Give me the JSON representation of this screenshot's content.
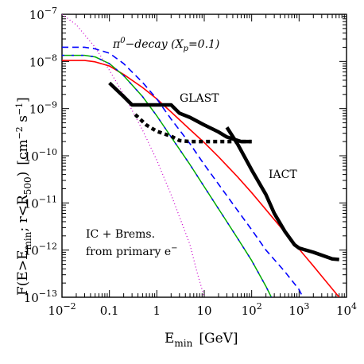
{
  "chart_data": {
    "type": "line",
    "xscale": "log",
    "yscale": "log",
    "xlim": [
      0.01,
      10000
    ],
    "ylim": [
      1e-13,
      1e-07
    ],
    "xlabel_main": "E",
    "xlabel_sub": "min",
    "xlabel_unit": "[GeV]",
    "ylabel_pre": "F(E>E",
    "ylabel_sub1": "min",
    "ylabel_mid": "; r<R",
    "ylabel_sub2": "500",
    "ylabel_post": ")",
    "ylabel_unit_pre": "[cm",
    "ylabel_unit_sup1": "−2",
    "ylabel_unit_mid": " s",
    "ylabel_unit_sup2": "−1",
    "ylabel_unit_post": "]",
    "x_ticks": [
      {
        "value": 0.01,
        "base": "10",
        "exp": "−2"
      },
      {
        "value": 0.1,
        "text": "0.1"
      },
      {
        "value": 1,
        "text": "1"
      },
      {
        "value": 10,
        "text": "10"
      },
      {
        "value": 100,
        "base": "10",
        "exp": "2"
      },
      {
        "value": 1000,
        "base": "10",
        "exp": "3"
      },
      {
        "value": 10000,
        "base": "10",
        "exp": "4"
      }
    ],
    "y_ticks": [
      {
        "value": 1e-13,
        "base": "10",
        "exp": "−13"
      },
      {
        "value": 1e-12,
        "base": "10",
        "exp": "−12"
      },
      {
        "value": 1e-11,
        "base": "10",
        "exp": "−11"
      },
      {
        "value": 1e-10,
        "base": "10",
        "exp": "−10"
      },
      {
        "value": 1e-09,
        "base": "10",
        "exp": "−9"
      },
      {
        "value": 1e-08,
        "base": "10",
        "exp": "−8"
      },
      {
        "value": 1e-07,
        "base": "10",
        "exp": "−7"
      }
    ],
    "annotations": {
      "pi0_label": "π",
      "pi0_sup": "0",
      "pi0_rest": "−decay (X",
      "pi0_sub": "p",
      "pi0_end": "=0.1)",
      "glast": "GLAST",
      "iact": "IACT",
      "ic_line1": "IC + Brems.",
      "ic_line2": "from primary e",
      "ic_sup": "−"
    },
    "series": [
      {
        "color": "#ff0000",
        "dash": "solid",
        "width": 1.6,
        "points": [
          [
            0.01,
            1.05e-08
          ],
          [
            0.03,
            1.05e-08
          ],
          [
            0.05,
            9.8e-09
          ],
          [
            0.1,
            8e-09
          ],
          [
            0.2,
            5.3e-09
          ],
          [
            0.5,
            2.8e-09
          ],
          [
            1,
            1.6e-09
          ],
          [
            2,
            8.5e-10
          ],
          [
            5,
            3.6e-10
          ],
          [
            10,
            1.9e-10
          ],
          [
            20,
            9.5e-11
          ],
          [
            50,
            3.6e-11
          ],
          [
            100,
            1.65e-11
          ],
          [
            200,
            7.2e-12
          ],
          [
            500,
            2.4e-12
          ],
          [
            1000,
            1.05e-12
          ],
          [
            2000,
            4.6e-13
          ],
          [
            3000,
            2.8e-13
          ],
          [
            5000,
            1.5e-13
          ],
          [
            7000,
            1e-13
          ]
        ]
      },
      {
        "color": "#0000ff",
        "dash": "8,5",
        "width": 1.6,
        "points": [
          [
            0.01,
            2e-08
          ],
          [
            0.03,
            2e-08
          ],
          [
            0.05,
            1.85e-08
          ],
          [
            0.1,
            1.5e-08
          ],
          [
            0.2,
            9e-09
          ],
          [
            0.5,
            3.6e-09
          ],
          [
            1,
            1.6e-09
          ],
          [
            2,
            6e-10
          ],
          [
            5,
            1.8e-10
          ],
          [
            10,
            6.5e-11
          ],
          [
            20,
            2.5e-11
          ],
          [
            50,
            7e-12
          ],
          [
            100,
            2.7e-12
          ],
          [
            200,
            1e-12
          ],
          [
            500,
            3.5e-13
          ],
          [
            1000,
            1.45e-13
          ],
          [
            1200,
            1e-13
          ]
        ]
      },
      {
        "color": "#00aa00",
        "dash": "solid",
        "width": 1.5,
        "points": [
          [
            0.01,
            1.35e-08
          ],
          [
            0.03,
            1.35e-08
          ],
          [
            0.05,
            1.25e-08
          ],
          [
            0.1,
            9e-09
          ],
          [
            0.2,
            5e-09
          ],
          [
            0.5,
            1.8e-09
          ],
          [
            1,
            7e-10
          ],
          [
            2,
            2.5e-10
          ],
          [
            5,
            6.5e-11
          ],
          [
            10,
            2.2e-11
          ],
          [
            20,
            7.5e-12
          ],
          [
            50,
            1.8e-12
          ],
          [
            100,
            6e-13
          ],
          [
            200,
            1.7e-13
          ],
          [
            260,
            1e-13
          ]
        ]
      },
      {
        "color": "#0000ff",
        "dash": "3,9",
        "width": 1.5,
        "points": [
          [
            0.01,
            1.35e-08
          ],
          [
            0.03,
            1.35e-08
          ],
          [
            0.05,
            1.25e-08
          ],
          [
            0.1,
            9e-09
          ],
          [
            0.2,
            5e-09
          ],
          [
            0.5,
            1.8e-09
          ],
          [
            1,
            7e-10
          ],
          [
            2,
            2.5e-10
          ],
          [
            5,
            6.5e-11
          ],
          [
            10,
            2.2e-11
          ],
          [
            20,
            7.5e-12
          ],
          [
            50,
            1.8e-12
          ],
          [
            100,
            6e-13
          ],
          [
            200,
            1.7e-13
          ],
          [
            260,
            1e-13
          ]
        ]
      },
      {
        "color": "#cc00cc",
        "dash": "1,3",
        "width": 1.3,
        "points": [
          [
            0.01,
            1e-07
          ],
          [
            0.02,
            6e-08
          ],
          [
            0.05,
            2e-08
          ],
          [
            0.1,
            6.5e-09
          ],
          [
            0.2,
            2e-09
          ],
          [
            0.5,
            3.5e-10
          ],
          [
            1,
            8e-11
          ],
          [
            2,
            1.5e-11
          ],
          [
            5,
            1.3e-12
          ],
          [
            7,
            3.5e-13
          ],
          [
            10,
            1e-13
          ]
        ]
      },
      {
        "color": "#000000",
        "dash": "solid",
        "width": 4.5,
        "points": [
          [
            0.1,
            3.5e-09
          ],
          [
            0.2,
            1.8e-09
          ],
          [
            0.3,
            1.2e-09
          ],
          [
            0.5,
            1.2e-09
          ],
          [
            1,
            1.2e-09
          ],
          [
            2,
            1.2e-09
          ],
          [
            3,
            8e-10
          ],
          [
            5,
            6.5e-10
          ],
          [
            10,
            4.5e-10
          ],
          [
            20,
            3.2e-10
          ],
          [
            30,
            2.5e-10
          ],
          [
            60,
            2e-10
          ],
          [
            100,
            2e-10
          ]
        ]
      },
      {
        "color": "#000000",
        "dash": "5,4",
        "width": 4.5,
        "points": [
          [
            0.35,
            7.5e-10
          ],
          [
            0.6,
            4.5e-10
          ],
          [
            1,
            3.3e-10
          ],
          [
            2,
            2.6e-10
          ],
          [
            3,
            2.1e-10
          ],
          [
            5,
            2e-10
          ],
          [
            10,
            2e-10
          ],
          [
            20,
            2e-10
          ],
          [
            50,
            2e-10
          ],
          [
            100,
            2e-10
          ]
        ]
      },
      {
        "color": "#000000",
        "dash": "solid",
        "width": 4.5,
        "points": [
          [
            30,
            4e-10
          ],
          [
            50,
            1.8e-10
          ],
          [
            100,
            5e-11
          ],
          [
            200,
            1.5e-11
          ],
          [
            300,
            6e-12
          ],
          [
            500,
            2.5e-12
          ],
          [
            800,
            1.3e-12
          ],
          [
            1000,
            1.1e-12
          ],
          [
            2000,
            9e-13
          ],
          [
            5000,
            6.5e-13
          ],
          [
            7000,
            6.3e-13
          ]
        ]
      }
    ]
  }
}
